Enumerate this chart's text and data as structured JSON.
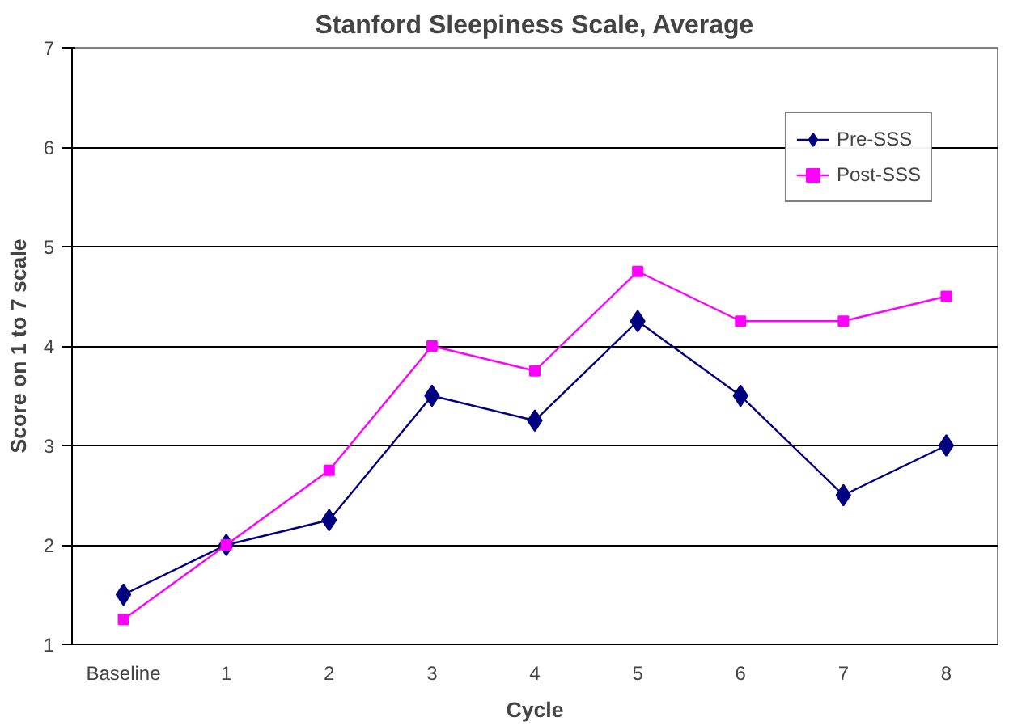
{
  "chart_data": {
    "type": "line",
    "title": "Stanford Sleepiness Scale, Average",
    "xlabel": "Cycle",
    "ylabel": "Score on 1 to 7 scale",
    "categories": [
      "Baseline",
      "1",
      "2",
      "3",
      "4",
      "5",
      "6",
      "7",
      "8"
    ],
    "series": [
      {
        "name": "Pre-SSS",
        "color": "#000080",
        "marker": "diamond",
        "values": [
          1.5,
          2.0,
          2.25,
          3.5,
          3.25,
          4.25,
          3.5,
          2.5,
          3.0
        ]
      },
      {
        "name": "Post-SSS",
        "color": "#ff00ff",
        "marker": "square",
        "values": [
          1.25,
          2.0,
          2.75,
          4.0,
          3.75,
          4.75,
          4.25,
          4.25,
          4.5
        ]
      }
    ],
    "ylim": [
      1,
      7
    ],
    "yticks": [
      1,
      2,
      3,
      4,
      5,
      6,
      7
    ],
    "grid": "y",
    "legend": "top right",
    "line_style": "solid"
  }
}
